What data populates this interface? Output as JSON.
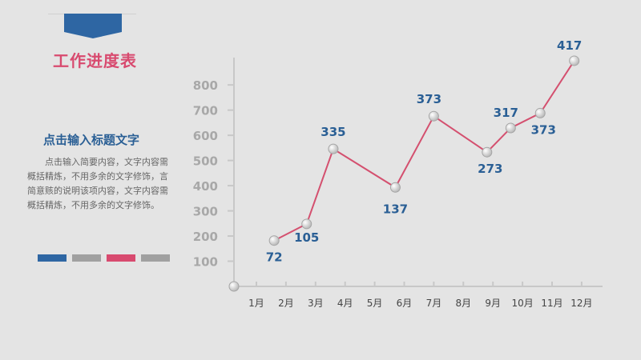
{
  "title": "工作进度表",
  "subtitle": "点击输入标题文字",
  "body_text": "点击输入简要内容，文字内容需概括精炼，不用多余的文字修饰，言简意赅的说明该项内容，文字内容需概括精炼，不用多余的文字修饰。",
  "colors": {
    "accent_blue": "#2e66a3",
    "accent_pink": "#d84a6f",
    "bar_gray": "#a0a0a0",
    "line": "#d4506f",
    "axis": "#c8c8c8",
    "tick_text": "#a8a8a8",
    "label_text": "#2a5f95"
  },
  "color_bars": [
    {
      "color": "#2e66a3"
    },
    {
      "color": "#a0a0a0"
    },
    {
      "color": "#d84a6f"
    },
    {
      "color": "#a0a0a0"
    }
  ],
  "chart_data": {
    "type": "line",
    "categories": [
      "1月",
      "2月",
      "3月",
      "4月",
      "5月",
      "6月",
      "7月",
      "8月",
      "9月",
      "10月",
      "11月",
      "12月"
    ],
    "y_ticks": [
      100,
      200,
      300,
      400,
      500,
      600,
      700,
      800
    ],
    "ylim": [
      0,
      900
    ],
    "grid": false,
    "points": [
      {
        "x": 1.6,
        "y": 182,
        "label": "72"
      },
      {
        "x": 2.7,
        "y": 248,
        "label": "105"
      },
      {
        "x": 3.6,
        "y": 546,
        "label": "335"
      },
      {
        "x": 5.7,
        "y": 393,
        "label": "137"
      },
      {
        "x": 7.0,
        "y": 676,
        "label": "373"
      },
      {
        "x": 8.8,
        "y": 533,
        "label": "273"
      },
      {
        "x": 9.6,
        "y": 629,
        "label": "317"
      },
      {
        "x": 10.6,
        "y": 688,
        "label": "373"
      },
      {
        "x": 11.75,
        "y": 896,
        "label": "417"
      }
    ]
  }
}
